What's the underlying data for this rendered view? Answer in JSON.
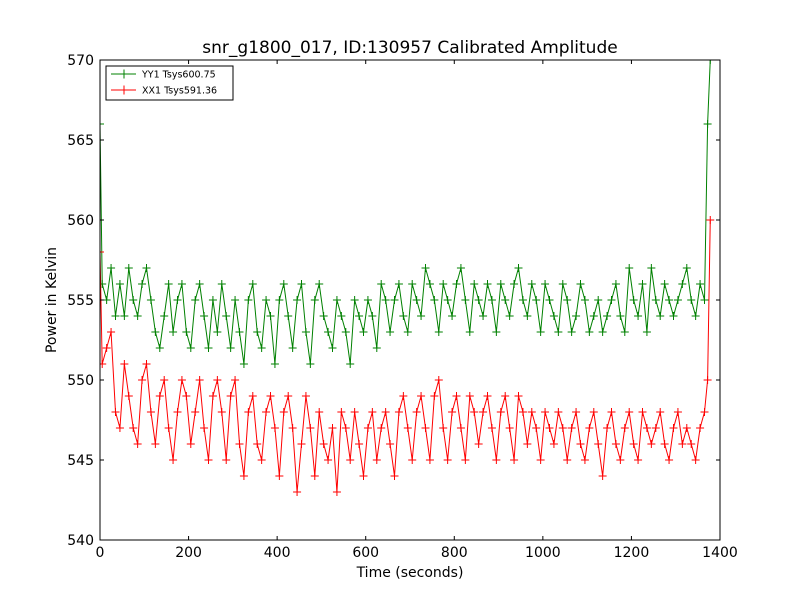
{
  "chart_data": {
    "type": "line",
    "title": "snr_g1800_017, ID:130957 Calibrated Amplitude",
    "xlabel": "Time (seconds)",
    "ylabel": "Power in Kelvin",
    "xlim": [
      0,
      1400
    ],
    "ylim": [
      540,
      570
    ],
    "xticks": [
      0,
      200,
      400,
      600,
      800,
      1000,
      1200,
      1400
    ],
    "yticks": [
      540,
      545,
      550,
      555,
      560,
      565,
      570
    ],
    "grid": false,
    "legend_position": "top-left",
    "marker": "plus",
    "series": [
      {
        "name": "YY1 Tsys600.75",
        "color": "#008000",
        "x": [
          0,
          5,
          15,
          25,
          35,
          45,
          55,
          65,
          75,
          85,
          95,
          105,
          115,
          125,
          135,
          145,
          155,
          165,
          175,
          185,
          195,
          205,
          215,
          225,
          235,
          245,
          255,
          265,
          275,
          285,
          295,
          305,
          315,
          325,
          335,
          345,
          355,
          365,
          375,
          385,
          395,
          405,
          415,
          425,
          435,
          445,
          455,
          465,
          475,
          485,
          495,
          505,
          515,
          525,
          535,
          545,
          555,
          565,
          575,
          585,
          595,
          605,
          615,
          625,
          635,
          645,
          655,
          665,
          675,
          685,
          695,
          705,
          715,
          725,
          735,
          745,
          755,
          765,
          775,
          785,
          795,
          805,
          815,
          825,
          835,
          845,
          855,
          865,
          875,
          885,
          895,
          905,
          915,
          925,
          935,
          945,
          955,
          965,
          975,
          985,
          995,
          1005,
          1015,
          1025,
          1035,
          1045,
          1055,
          1065,
          1075,
          1085,
          1095,
          1105,
          1115,
          1125,
          1135,
          1145,
          1155,
          1165,
          1175,
          1185,
          1195,
          1205,
          1215,
          1225,
          1235,
          1245,
          1255,
          1265,
          1275,
          1285,
          1295,
          1305,
          1315,
          1325,
          1335,
          1345,
          1355,
          1365,
          1372,
          1378
        ],
        "y": [
          566,
          556,
          555,
          557,
          554,
          556,
          554,
          557,
          555,
          554,
          556,
          557,
          555,
          553,
          552,
          554,
          556,
          553,
          555,
          556,
          553,
          552,
          555,
          556,
          554,
          552,
          555,
          553,
          556,
          554,
          552,
          555,
          553,
          551,
          555,
          556,
          553,
          552,
          555,
          554,
          551,
          555,
          556,
          554,
          552,
          555,
          556,
          553,
          551,
          555,
          556,
          554,
          553,
          552,
          555,
          554,
          553,
          551,
          555,
          554,
          553,
          555,
          554,
          552,
          556,
          555,
          553,
          555,
          556,
          554,
          553,
          556,
          555,
          554,
          557,
          556,
          555,
          553,
          556,
          555,
          554,
          556,
          557,
          555,
          553,
          556,
          555,
          554,
          556,
          555,
          553,
          556,
          555,
          554,
          556,
          557,
          555,
          554,
          556,
          555,
          553,
          556,
          555,
          554,
          553,
          556,
          555,
          553,
          554,
          556,
          555,
          553,
          554,
          555,
          553,
          554,
          555,
          556,
          554,
          553,
          557,
          555,
          554,
          556,
          553,
          557,
          555,
          554,
          556,
          555,
          554,
          555,
          556,
          557,
          555,
          554,
          556,
          555,
          566,
          570
        ]
      },
      {
        "name": "XX1 Tsys591.36",
        "color": "#ff0000",
        "x": [
          0,
          5,
          15,
          25,
          35,
          45,
          55,
          65,
          75,
          85,
          95,
          105,
          115,
          125,
          135,
          145,
          155,
          165,
          175,
          185,
          195,
          205,
          215,
          225,
          235,
          245,
          255,
          265,
          275,
          285,
          295,
          305,
          315,
          325,
          335,
          345,
          355,
          365,
          375,
          385,
          395,
          405,
          415,
          425,
          435,
          445,
          455,
          465,
          475,
          485,
          495,
          505,
          515,
          525,
          535,
          545,
          555,
          565,
          575,
          585,
          595,
          605,
          615,
          625,
          635,
          645,
          655,
          665,
          675,
          685,
          695,
          705,
          715,
          725,
          735,
          745,
          755,
          765,
          775,
          785,
          795,
          805,
          815,
          825,
          835,
          845,
          855,
          865,
          875,
          885,
          895,
          905,
          915,
          925,
          935,
          945,
          955,
          965,
          975,
          985,
          995,
          1005,
          1015,
          1025,
          1035,
          1045,
          1055,
          1065,
          1075,
          1085,
          1095,
          1105,
          1115,
          1125,
          1135,
          1145,
          1155,
          1165,
          1175,
          1185,
          1195,
          1205,
          1215,
          1225,
          1235,
          1245,
          1255,
          1265,
          1275,
          1285,
          1295,
          1305,
          1315,
          1325,
          1335,
          1345,
          1355,
          1365,
          1372,
          1378
        ],
        "y": [
          558,
          551,
          552,
          553,
          548,
          547,
          551,
          549,
          547,
          546,
          550,
          551,
          548,
          546,
          549,
          550,
          547,
          545,
          548,
          550,
          549,
          546,
          548,
          550,
          547,
          545,
          549,
          550,
          548,
          545,
          549,
          550,
          546,
          544,
          548,
          549,
          546,
          545,
          548,
          549,
          547,
          544,
          548,
          549,
          547,
          543,
          546,
          549,
          547,
          544,
          548,
          546,
          545,
          547,
          543,
          548,
          547,
          545,
          548,
          546,
          544,
          547,
          548,
          545,
          547,
          548,
          546,
          544,
          548,
          549,
          547,
          545,
          548,
          549,
          547,
          545,
          549,
          550,
          547,
          545,
          548,
          549,
          547,
          545,
          549,
          548,
          546,
          548,
          549,
          547,
          545,
          548,
          549,
          547,
          545,
          549,
          548,
          546,
          548,
          547,
          545,
          548,
          547,
          546,
          548,
          547,
          545,
          547,
          548,
          546,
          545,
          547,
          548,
          546,
          544,
          547,
          548,
          546,
          545,
          547,
          548,
          546,
          545,
          548,
          547,
          546,
          547,
          548,
          546,
          545,
          547,
          548,
          546,
          547,
          546,
          545,
          547,
          548,
          550,
          560
        ]
      }
    ]
  }
}
